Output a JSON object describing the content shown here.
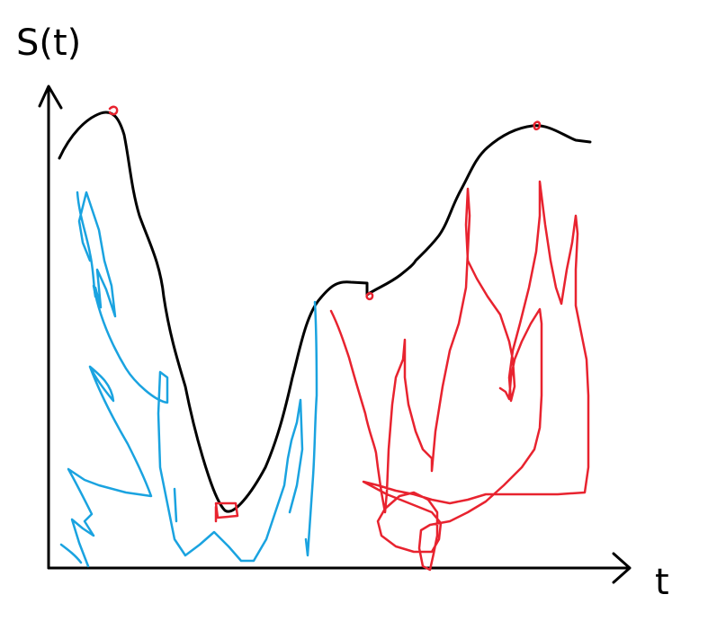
{
  "y_label": "S(t)",
  "x_label": "t",
  "colors": {
    "curve": "#000000",
    "blue_scribble": "#1aa3e0",
    "red_scribble": "#e8232f"
  }
}
